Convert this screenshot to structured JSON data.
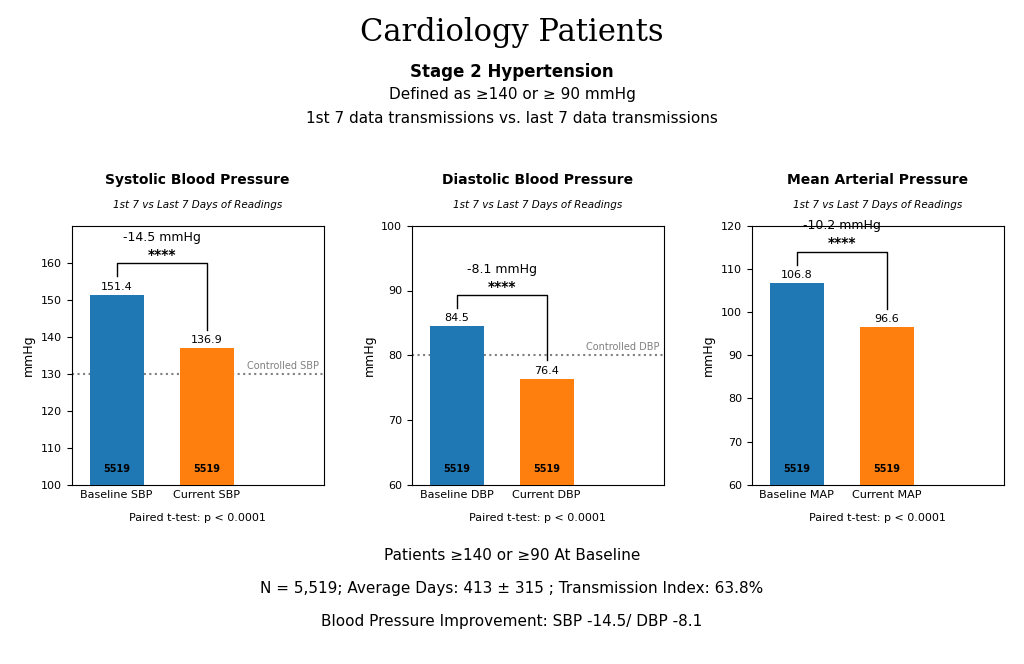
{
  "title": "Cardiology Patients",
  "subtitle": [
    "Stage 2 Hypertension",
    "Defined as ≥140 or ≥ 90 mmHg",
    "1st 7 data transmissions vs. last 7 data transmissions"
  ],
  "footer": [
    "Patients ≥140 or ≥90 At Baseline",
    "N = 5,519; Average Days: 413 ± 315 ; Transmission Index: 63.8%",
    "Blood Pressure Improvement: SBP -14.5/ DBP -8.1"
  ],
  "chart_data": [
    {
      "type": "bar",
      "title": "Systolic Blood Pressure",
      "subtitle": "1st 7 vs Last 7 Days of Readings",
      "ylabel": "mmHg",
      "categories": [
        "Baseline SBP",
        "Current SBP"
      ],
      "values": [
        151.4,
        136.9
      ],
      "data_labels": true,
      "n": [
        5519,
        5519
      ],
      "ylim": [
        100,
        170
      ],
      "yticks": [
        100,
        110,
        120,
        130,
        140,
        150,
        160
      ],
      "ref_line": {
        "value": 130,
        "label": "Controlled SBP",
        "color": "gray",
        "line_style": "dotted"
      },
      "significance": "****",
      "difference": "-14.5 mmHg",
      "note": "Paired t-test: p < 0.0001"
    },
    {
      "type": "bar",
      "title": "Diastolic Blood Pressure",
      "subtitle": "1st 7 vs Last 7 Days of Readings",
      "ylabel": "mmHg",
      "categories": [
        "Baseline DBP",
        "Current DBP"
      ],
      "values": [
        84.5,
        76.4
      ],
      "data_labels": true,
      "n": [
        5519,
        5519
      ],
      "ylim": [
        60,
        100
      ],
      "yticks": [
        60,
        70,
        80,
        90,
        100
      ],
      "ref_line": {
        "value": 80,
        "label": "Controlled DBP",
        "color": "gray",
        "line_style": "dotted"
      },
      "significance": "****",
      "difference": "-8.1 mmHg",
      "note": "Paired t-test: p < 0.0001"
    },
    {
      "type": "bar",
      "title": "Mean Arterial Pressure",
      "subtitle": "1st 7 vs Last 7 Days of Readings",
      "ylabel": "mmHg",
      "categories": [
        "Baseline MAP",
        "Current MAP"
      ],
      "values": [
        106.8,
        96.6
      ],
      "data_labels": true,
      "n": [
        5519,
        5519
      ],
      "ylim": [
        60,
        120
      ],
      "yticks": [
        60,
        70,
        80,
        90,
        100,
        110,
        120
      ],
      "significance": "****",
      "difference": "-10.2 mmHg",
      "note": "Paired t-test: p < 0.0001"
    }
  ]
}
